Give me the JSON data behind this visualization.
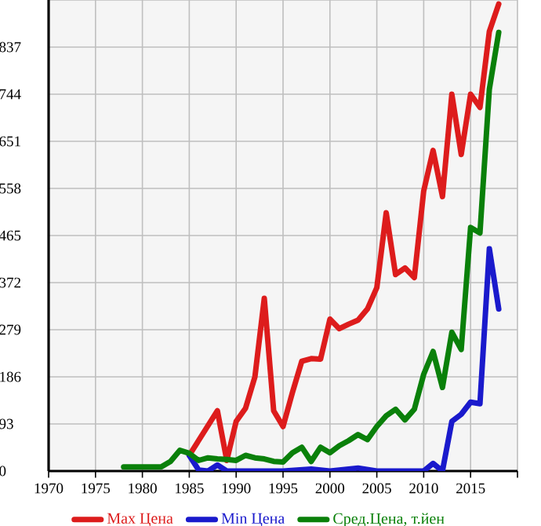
{
  "chart_data": {
    "type": "line",
    "xlim": [
      1970,
      2020
    ],
    "ylim": [
      0,
      930
    ],
    "xticks": [
      1970,
      1975,
      1980,
      1985,
      1990,
      1995,
      2000,
      2005,
      2010,
      2015,
      {
        "value": 2020,
        "label": null
      }
    ],
    "yticks": [
      0,
      93,
      186,
      279,
      372,
      465,
      558,
      651,
      744,
      837,
      {
        "value": 930,
        "label": null
      }
    ],
    "grid": true,
    "legend": "bottom",
    "series": [
      {
        "name": "Max Цена",
        "color": "#dd1c1c",
        "x": [
          1985,
          1988,
          1989,
          1990,
          1991,
          1992,
          1993,
          1994,
          1995,
          1996,
          1997,
          1998,
          1999,
          2000,
          2001,
          2002,
          2003,
          2004,
          2005,
          2006,
          2007,
          2008,
          2009,
          2010,
          2011,
          2012,
          2013,
          2014,
          2015,
          2016,
          2017,
          2018
        ],
        "values": [
          31,
          119,
          21,
          98,
          124,
          186,
          341,
          119,
          88,
          155,
          217,
          222,
          221,
          300,
          281,
          290,
          298,
          320,
          362,
          510,
          388,
          401,
          382,
          553,
          633,
          542,
          744,
          625,
          744,
          718,
          868,
          922
        ]
      },
      {
        "name": "Min Цена",
        "color": "#1a1acc",
        "x": [
          1985,
          1986,
          1987,
          1988,
          1989,
          1990,
          1995,
          1998,
          2000,
          2003,
          2005,
          2010,
          2011,
          2012,
          2013,
          2014,
          2015,
          2016,
          2017,
          2018
        ],
        "values": [
          31,
          2,
          0,
          12,
          0,
          0,
          0,
          4,
          0,
          6,
          0,
          0,
          15,
          0,
          98,
          112,
          136,
          133,
          439,
          320
        ]
      },
      {
        "name": "Сред.Цена, т.йен",
        "color": "#0a800a",
        "x": [
          1978,
          1982,
          1983,
          1984,
          1985,
          1986,
          1987,
          1988,
          1989,
          1990,
          1991,
          1992,
          1993,
          1994,
          1995,
          1996,
          1997,
          1998,
          1999,
          2000,
          2001,
          2002,
          2003,
          2004,
          2005,
          2006,
          2007,
          2008,
          2009,
          2010,
          2011,
          2012,
          2013,
          2014,
          2015,
          2016,
          2017,
          2018
        ],
        "values": [
          8,
          8,
          19,
          41,
          35,
          21,
          26,
          24,
          23,
          21,
          31,
          26,
          24,
          19,
          18,
          36,
          47,
          19,
          47,
          36,
          50,
          60,
          72,
          62,
          88,
          109,
          122,
          101,
          122,
          191,
          236,
          165,
          274,
          240,
          481,
          470,
          754,
          866
        ]
      }
    ]
  }
}
